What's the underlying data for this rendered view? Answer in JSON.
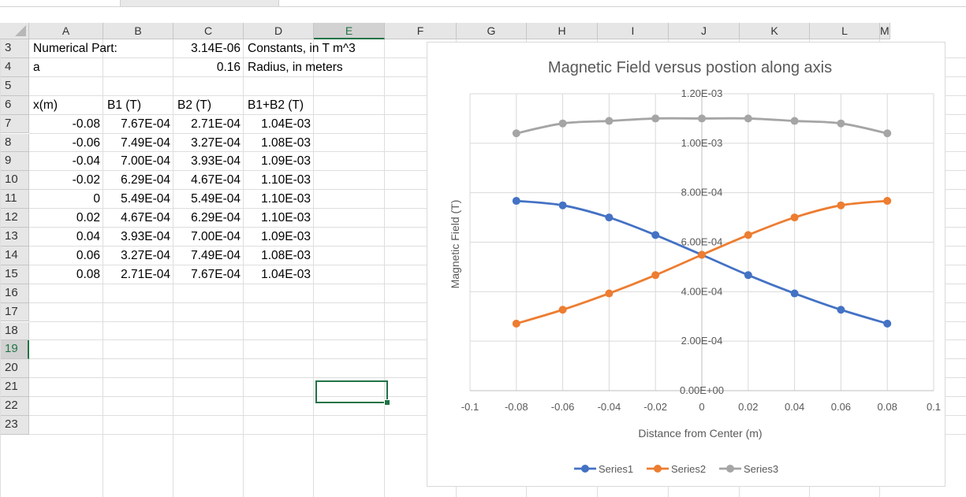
{
  "sheet": {
    "columns": [
      "A",
      "B",
      "C",
      "D",
      "E",
      "F",
      "G",
      "H",
      "I",
      "J",
      "K",
      "L",
      "M"
    ],
    "selected_column": "E",
    "selected_row": "19",
    "rows": [
      {
        "num": "3",
        "cells": {
          "A": "Numerical Part:",
          "C": "3.14E-06",
          "D": "Constants, in T m^3"
        }
      },
      {
        "num": "4",
        "cells": {
          "A": "a",
          "C": "0.16",
          "D": "Radius, in meters"
        }
      },
      {
        "num": "5",
        "cells": {}
      },
      {
        "num": "6",
        "cells": {
          "A": "x(m)",
          "B": "B1 (T)",
          "C": "B2 (T)",
          "D": "B1+B2 (T)"
        }
      },
      {
        "num": "7",
        "cells": {
          "A": "-0.08",
          "B": "7.67E-04",
          "C": "2.71E-04",
          "D": "1.04E-03"
        }
      },
      {
        "num": "8",
        "cells": {
          "A": "-0.06",
          "B": "7.49E-04",
          "C": "3.27E-04",
          "D": "1.08E-03"
        }
      },
      {
        "num": "9",
        "cells": {
          "A": "-0.04",
          "B": "7.00E-04",
          "C": "3.93E-04",
          "D": "1.09E-03"
        }
      },
      {
        "num": "10",
        "cells": {
          "A": "-0.02",
          "B": "6.29E-04",
          "C": "4.67E-04",
          "D": "1.10E-03"
        }
      },
      {
        "num": "11",
        "cells": {
          "A": "0",
          "B": "5.49E-04",
          "C": "5.49E-04",
          "D": "1.10E-03"
        }
      },
      {
        "num": "12",
        "cells": {
          "A": "0.02",
          "B": "4.67E-04",
          "C": "6.29E-04",
          "D": "1.10E-03"
        }
      },
      {
        "num": "13",
        "cells": {
          "A": "0.04",
          "B": "3.93E-04",
          "C": "7.00E-04",
          "D": "1.09E-03"
        }
      },
      {
        "num": "14",
        "cells": {
          "A": "0.06",
          "B": "3.27E-04",
          "C": "7.49E-04",
          "D": "1.08E-03"
        }
      },
      {
        "num": "15",
        "cells": {
          "A": "0.08",
          "B": "2.71E-04",
          "C": "7.67E-04",
          "D": "1.04E-03"
        }
      },
      {
        "num": "16",
        "cells": {}
      },
      {
        "num": "17",
        "cells": {}
      },
      {
        "num": "18",
        "cells": {}
      },
      {
        "num": "19",
        "cells": {}
      },
      {
        "num": "20",
        "cells": {}
      },
      {
        "num": "21",
        "cells": {}
      },
      {
        "num": "22",
        "cells": {}
      },
      {
        "num": "23",
        "cells": {}
      }
    ],
    "right_aligned_columns": [
      "A",
      "B",
      "C",
      "D"
    ],
    "left_text_rows": [
      "3",
      "4",
      "6"
    ],
    "right_text_cells": [
      "C3",
      "C4"
    ]
  },
  "chart_data": {
    "type": "scatter",
    "title": "Magnetic Field versus postion along axis",
    "xlabel": "Distance from Center (m)",
    "ylabel": "Magnetic Field (T)",
    "xlim": [
      -0.1,
      0.1
    ],
    "ylim": [
      0,
      0.0012
    ],
    "x_ticks": [
      "-0.1",
      "-0.08",
      "-0.06",
      "-0.04",
      "-0.02",
      "0",
      "0.02",
      "0.04",
      "0.06",
      "0.08",
      "0.1"
    ],
    "y_ticks": [
      "0.00E+00",
      "2.00E-04",
      "4.00E-04",
      "6.00E-04",
      "8.00E-04",
      "1.00E-03",
      "1.20E-03"
    ],
    "grid": true,
    "legend_position": "bottom",
    "x": [
      -0.08,
      -0.06,
      -0.04,
      -0.02,
      0,
      0.02,
      0.04,
      0.06,
      0.08
    ],
    "series": [
      {
        "name": "Series1",
        "color": "#4472C4",
        "values": [
          0.000767,
          0.000749,
          0.0007,
          0.000629,
          0.000549,
          0.000467,
          0.000393,
          0.000327,
          0.000271
        ]
      },
      {
        "name": "Series2",
        "color": "#ED7D31",
        "values": [
          0.000271,
          0.000327,
          0.000393,
          0.000467,
          0.000549,
          0.000629,
          0.0007,
          0.000749,
          0.000767
        ]
      },
      {
        "name": "Series3",
        "color": "#A5A5A5",
        "values": [
          0.00104,
          0.00108,
          0.00109,
          0.0011,
          0.0011,
          0.0011,
          0.00109,
          0.00108,
          0.00104
        ]
      }
    ]
  },
  "colors": {
    "accent": "#217346",
    "header_bg": "#e6e6e6",
    "gridline": "#dedede"
  }
}
